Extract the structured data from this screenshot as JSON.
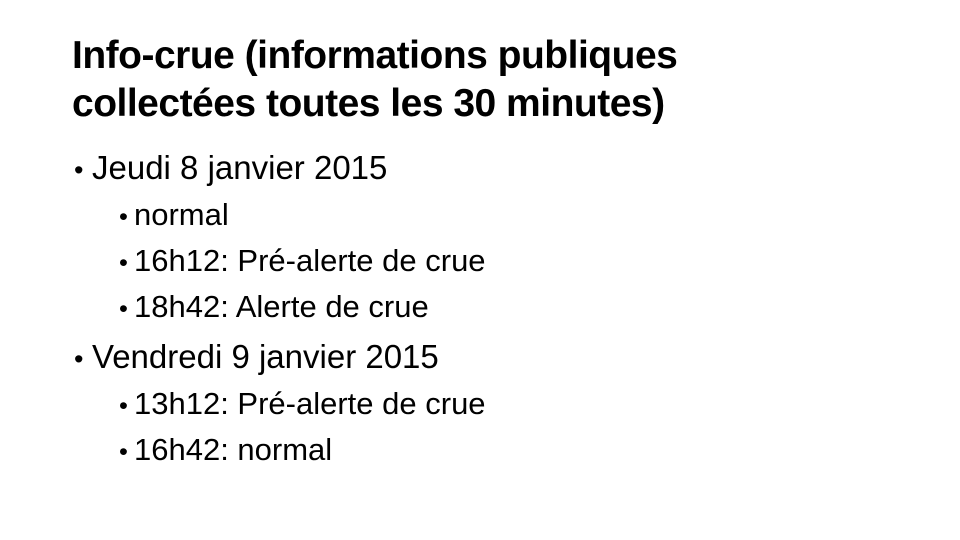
{
  "title": {
    "line1": "Info-crue (informations publiques",
    "line2": "collectées toutes les 30 minutes)"
  },
  "list": {
    "bullet": "•",
    "items": [
      {
        "label": "Jeudi 8 janvier 2015",
        "children": [
          "normal",
          "16h12: Pré-alerte de crue",
          "18h42: Alerte de crue"
        ]
      },
      {
        "label": "Vendredi 9 janvier 2015",
        "children": [
          "13h12: Pré-alerte de crue",
          "16h42: normal"
        ]
      }
    ]
  }
}
